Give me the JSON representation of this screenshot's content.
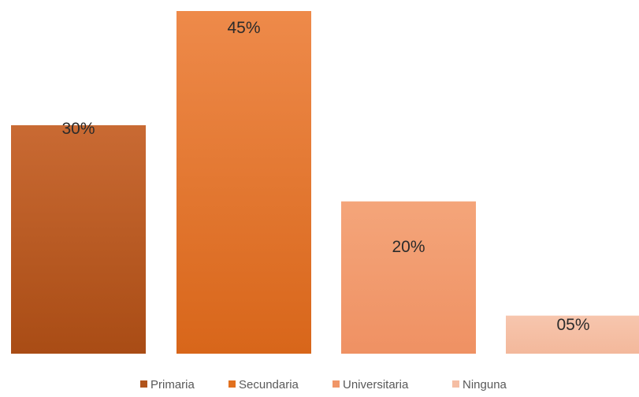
{
  "chart_data": {
    "type": "bar",
    "categories": [
      "Primaria",
      "Secundaria",
      "Universitaria",
      "Ninguna"
    ],
    "values": [
      30,
      45,
      20,
      5
    ],
    "data_labels": [
      "30%",
      "45%",
      "20%",
      "05%"
    ],
    "ylim": [
      0,
      45
    ],
    "grid": false,
    "legend_position": "bottom",
    "colors": {
      "Primaria": {
        "top": "#c96a33",
        "bottom": "#a94c15"
      },
      "Secundaria": {
        "top": "#ee8a4a",
        "bottom": "#d8661a"
      },
      "Universitaria": {
        "top": "#f4a57a",
        "bottom": "#ef9163"
      },
      "Ninguna": {
        "top": "#f7c6ae",
        "bottom": "#f3b89b"
      }
    },
    "legend_colors": {
      "Primaria": "#b0541c",
      "Secundaria": "#e2711f",
      "Universitaria": "#f09668",
      "Ninguna": "#f5bea4"
    }
  }
}
